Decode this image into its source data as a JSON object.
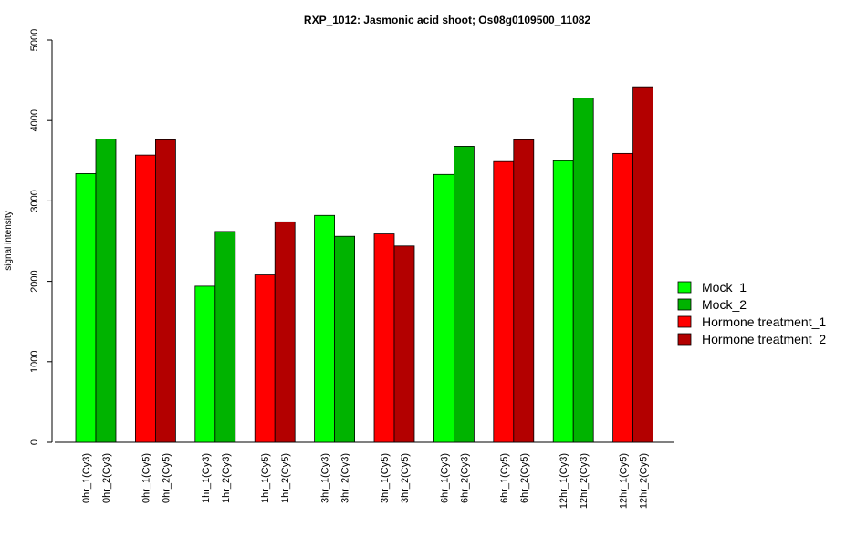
{
  "chart_data": {
    "type": "bar",
    "title": "RXP_1012: Jasmonic acid shoot; Os08g0109500_11082",
    "xlabel": "",
    "ylabel": "signal intensity",
    "ylim": [
      0,
      5000
    ],
    "yticks": [
      0,
      1000,
      2000,
      3000,
      4000,
      5000
    ],
    "categories": [
      "0hr_1(Cy3)",
      "0hr_2(Cy3)",
      "0hr_1(Cy5)",
      "0hr_2(Cy5)",
      "1hr_1(Cy3)",
      "1hr_2(Cy3)",
      "1hr_1(Cy5)",
      "1hr_2(Cy5)",
      "3hr_1(Cy3)",
      "3hr_2(Cy3)",
      "3hr_1(Cy5)",
      "3hr_2(Cy5)",
      "6hr_1(Cy3)",
      "6hr_2(Cy3)",
      "6hr_1(Cy5)",
      "6hr_2(Cy5)",
      "12hr_1(Cy3)",
      "12hr_2(Cy3)",
      "12hr_1(Cy5)",
      "12hr_2(Cy5)"
    ],
    "values": [
      3340,
      3770,
      3570,
      3760,
      1940,
      2620,
      2080,
      2740,
      2820,
      2560,
      2590,
      2440,
      3330,
      3680,
      3490,
      3760,
      3500,
      4280,
      3590,
      4420
    ],
    "series_index": [
      0,
      1,
      2,
      3,
      0,
      1,
      2,
      3,
      0,
      1,
      2,
      3,
      0,
      1,
      2,
      3,
      0,
      1,
      2,
      3
    ],
    "legend": [
      {
        "name": "Mock_1",
        "color": "#00ff00"
      },
      {
        "name": "Mock_2",
        "color": "#00b300"
      },
      {
        "name": "Hormone treatment_1",
        "color": "#ff0000"
      },
      {
        "name": "Hormone treatment_2",
        "color": "#b30000"
      }
    ],
    "legend_position": "right",
    "grid": false
  }
}
